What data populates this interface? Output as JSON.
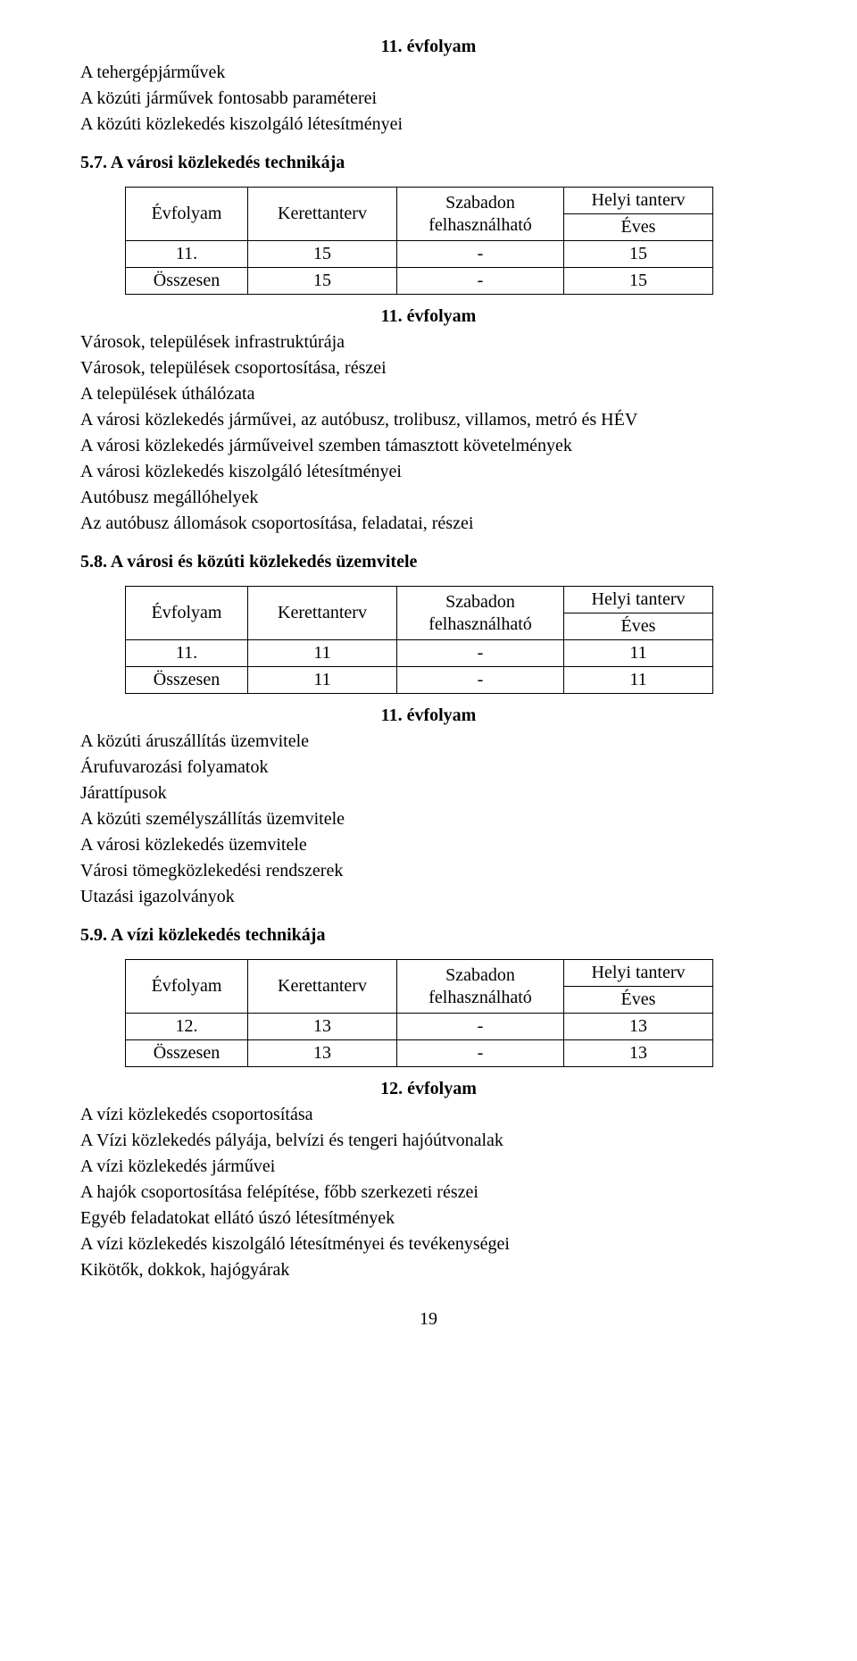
{
  "heading1": "11. évfolyam",
  "list1": [
    "A tehergépjárművek",
    "A közúti járművek fontosabb paraméterei",
    "A közúti közlekedés kiszolgáló létesítményei"
  ],
  "sec57": "5.7.  A városi közlekedés technikája",
  "table1": {
    "h_evfolyam": "Évfolyam",
    "h_kerettanterv": "Kerettanterv",
    "h_szabadon": "Szabadon",
    "h_felhasznalhato": "felhasználható",
    "h_helyi": "Helyi tanterv",
    "h_eves": "Éves",
    "rows": [
      {
        "c0": "11.",
        "c1": "15",
        "c2": "-",
        "c3": "15"
      },
      {
        "c0": "Összesen",
        "c1": "15",
        "c2": "-",
        "c3": "15"
      }
    ]
  },
  "heading2": "11. évfolyam",
  "list2": [
    "Városok, települések infrastruktúrája",
    "Városok, települések csoportosítása, részei",
    "A települések úthálózata",
    "A városi közlekedés járművei, az autóbusz, trolibusz, villamos, metró és HÉV",
    "A városi közlekedés járműveivel szemben támasztott követelmények",
    "A városi közlekedés kiszolgáló létesítményei",
    "Autóbusz megállóhelyek",
    "Az autóbusz állomások csoportosítása, feladatai, részei"
  ],
  "sec58": "5.8.  A városi és közúti közlekedés üzemvitele",
  "table2": {
    "h_evfolyam": "Évfolyam",
    "h_kerettanterv": "Kerettanterv",
    "h_szabadon": "Szabadon",
    "h_felhasznalhato": "felhasználható",
    "h_helyi": "Helyi tanterv",
    "h_eves": "Éves",
    "rows": [
      {
        "c0": "11.",
        "c1": "11",
        "c2": "-",
        "c3": "11"
      },
      {
        "c0": "Összesen",
        "c1": "11",
        "c2": "-",
        "c3": "11"
      }
    ]
  },
  "heading3": "11. évfolyam",
  "list3": [
    "A közúti áruszállítás üzemvitele",
    "Árufuvarozási folyamatok",
    "Járattípusok",
    "A közúti személyszállítás üzemvitele",
    "A városi közlekedés üzemvitele",
    "Városi tömegközlekedési rendszerek",
    "Utazási igazolványok"
  ],
  "sec59": "5.9.  A vízi közlekedés technikája",
  "table3": {
    "h_evfolyam": "Évfolyam",
    "h_kerettanterv": "Kerettanterv",
    "h_szabadon": "Szabadon",
    "h_felhasznalhato": "felhasználható",
    "h_helyi": "Helyi tanterv",
    "h_eves": "Éves",
    "rows": [
      {
        "c0": "12.",
        "c1": "13",
        "c2": "-",
        "c3": "13"
      },
      {
        "c0": "Összesen",
        "c1": "13",
        "c2": "-",
        "c3": "13"
      }
    ]
  },
  "heading4": "12. évfolyam",
  "list4": [
    "A vízi közlekedés csoportosítása",
    "A Vízi közlekedés pályája, belvízi és tengeri hajóútvonalak",
    "A vízi közlekedés járművei",
    "A hajók csoportosítása felépítése, főbb szerkezeti részei",
    "Egyéb feladatokat ellátó úszó létesítmények",
    "A vízi közlekedés kiszolgáló létesítményei és tevékenységei",
    "Kikötők, dokkok, hajógyárak"
  ],
  "pagenum": "19"
}
